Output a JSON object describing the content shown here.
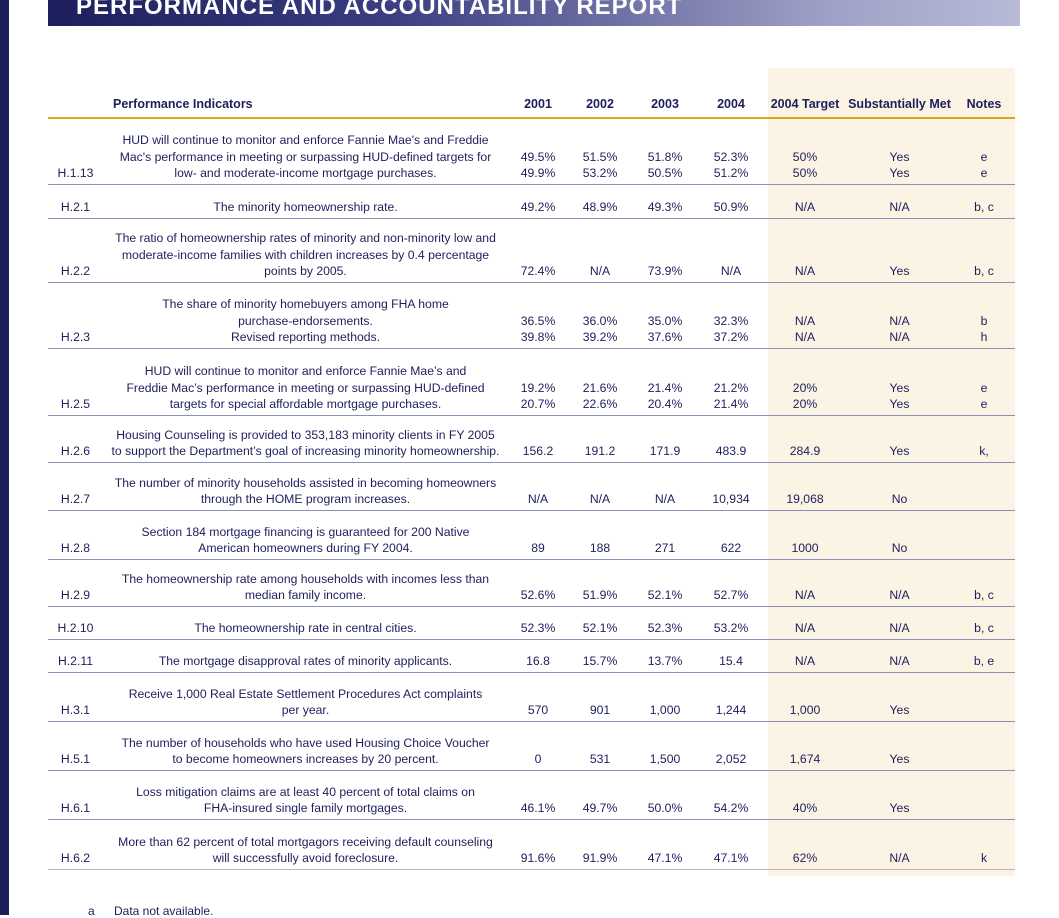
{
  "header": {
    "title": "PERFORMANCE AND ACCOUNTABILITY REPORT"
  },
  "table": {
    "columns": [
      "",
      "Performance Indicators",
      "2001",
      "2002",
      "2003",
      "2004",
      "2004 Target",
      "Substantially Met",
      "Notes"
    ],
    "rows": [
      {
        "code": "H.1.13",
        "desc": [
          "HUD will continue to monitor and enforce Fannie Mae's and Freddie",
          "Mac's performance in meeting or surpassing HUD-defined targets for",
          "low- and moderate-income mortgage purchases."
        ],
        "y2001": [
          "49.5%",
          "49.9%"
        ],
        "y2002": [
          "51.5%",
          "53.2%"
        ],
        "y2003": [
          "51.8%",
          "50.5%"
        ],
        "y2004": [
          "52.3%",
          "51.2%"
        ],
        "target": [
          "50%",
          "50%"
        ],
        "met": [
          "Yes",
          "Yes"
        ],
        "notes": [
          "e",
          "e"
        ]
      },
      {
        "code": "H.2.1",
        "desc": [
          "The minority homeownership rate."
        ],
        "y2001": [
          "49.2%"
        ],
        "y2002": [
          "48.9%"
        ],
        "y2003": [
          "49.3%"
        ],
        "y2004": [
          "50.9%"
        ],
        "target": [
          "N/A"
        ],
        "met": [
          "N/A"
        ],
        "notes": [
          "b, c"
        ]
      },
      {
        "code": "H.2.2",
        "desc": [
          "The ratio of homeownership rates of minority and non-minority low and",
          "moderate-income families with children increases by 0.4 percentage",
          "points by 2005."
        ],
        "y2001": [
          "72.4%"
        ],
        "y2002": [
          "N/A"
        ],
        "y2003": [
          "73.9%"
        ],
        "y2004": [
          "N/A"
        ],
        "target": [
          "N/A"
        ],
        "met": [
          "Yes"
        ],
        "notes": [
          "b, c"
        ]
      },
      {
        "code": "H.2.3",
        "desc": [
          "The share of minority homebuyers among FHA home",
          "purchase-endorsements.",
          "Revised reporting methods."
        ],
        "y2001": [
          "36.5%",
          "39.8%"
        ],
        "y2002": [
          "36.0%",
          "39.2%"
        ],
        "y2003": [
          "35.0%",
          "37.6%"
        ],
        "y2004": [
          "32.3%",
          "37.2%"
        ],
        "target": [
          "N/A",
          "N/A"
        ],
        "met": [
          "N/A",
          "N/A"
        ],
        "notes": [
          "b",
          "h"
        ]
      },
      {
        "code": "H.2.5",
        "desc": [
          "HUD will continue to monitor and enforce Fannie Mae’s and",
          "Freddie Mac’s performance in meeting or surpassing HUD-defined",
          "targets for special affordable mortgage purchases."
        ],
        "y2001": [
          "19.2%",
          "20.7%"
        ],
        "y2002": [
          "21.6%",
          "22.6%"
        ],
        "y2003": [
          "21.4%",
          "20.4%"
        ],
        "y2004": [
          "21.2%",
          "21.4%"
        ],
        "target": [
          "20%",
          "20%"
        ],
        "met": [
          "Yes",
          "Yes"
        ],
        "notes": [
          "e",
          "e"
        ]
      },
      {
        "code": "H.2.6",
        "desc": [
          "Housing Counseling is provided to 353,183 minority clients in FY 2005",
          "to support the Department’s goal of increasing minority homeownership."
        ],
        "y2001": [
          "156.2"
        ],
        "y2002": [
          "191.2"
        ],
        "y2003": [
          "171.9"
        ],
        "y2004": [
          "483.9"
        ],
        "target": [
          "284.9"
        ],
        "met": [
          "Yes"
        ],
        "notes": [
          "k,"
        ]
      },
      {
        "code": "H.2.7",
        "desc": [
          "The number of minority households assisted in becoming homeowners",
          "through the HOME program increases."
        ],
        "y2001": [
          "N/A"
        ],
        "y2002": [
          "N/A"
        ],
        "y2003": [
          "N/A"
        ],
        "y2004": [
          "10,934"
        ],
        "target": [
          "19,068"
        ],
        "met": [
          "No"
        ],
        "notes": [
          ""
        ]
      },
      {
        "code": "H.2.8",
        "desc": [
          "Section 184 mortgage financing is guaranteed for 200 Native",
          "American homeowners during FY 2004."
        ],
        "y2001": [
          "89"
        ],
        "y2002": [
          "188"
        ],
        "y2003": [
          "271"
        ],
        "y2004": [
          "622"
        ],
        "target": [
          "1000"
        ],
        "met": [
          "No"
        ],
        "notes": [
          ""
        ]
      },
      {
        "code": "H.2.9",
        "desc": [
          "The homeownership rate among households with incomes less than",
          "median family income."
        ],
        "y2001": [
          "52.6%"
        ],
        "y2002": [
          "51.9%"
        ],
        "y2003": [
          "52.1%"
        ],
        "y2004": [
          "52.7%"
        ],
        "target": [
          "N/A"
        ],
        "met": [
          "N/A"
        ],
        "notes": [
          "b, c"
        ]
      },
      {
        "code": "H.2.10",
        "desc": [
          "The homeownership rate in central cities."
        ],
        "y2001": [
          "52.3%"
        ],
        "y2002": [
          "52.1%"
        ],
        "y2003": [
          "52.3%"
        ],
        "y2004": [
          "53.2%"
        ],
        "target": [
          "N/A"
        ],
        "met": [
          "N/A"
        ],
        "notes": [
          "b, c"
        ]
      },
      {
        "code": "H.2.11",
        "desc": [
          "The mortgage disapproval rates of minority applicants."
        ],
        "y2001": [
          "16.8"
        ],
        "y2002": [
          "15.7%"
        ],
        "y2003": [
          "13.7%"
        ],
        "y2004": [
          "15.4"
        ],
        "target": [
          "N/A"
        ],
        "met": [
          "N/A"
        ],
        "notes": [
          "b, e"
        ]
      },
      {
        "code": "H.3.1",
        "desc": [
          "Receive 1,000 Real Estate Settlement Procedures Act complaints",
          "per year."
        ],
        "y2001": [
          "570"
        ],
        "y2002": [
          "901"
        ],
        "y2003": [
          "1,000"
        ],
        "y2004": [
          "1,244"
        ],
        "target": [
          "1,000"
        ],
        "met": [
          "Yes"
        ],
        "notes": [
          ""
        ]
      },
      {
        "code": "H.5.1",
        "desc": [
          "The number of households who have used Housing Choice Voucher",
          "to become homeowners increases by 20 percent."
        ],
        "y2001": [
          "0"
        ],
        "y2002": [
          "531"
        ],
        "y2003": [
          "1,500"
        ],
        "y2004": [
          "2,052"
        ],
        "target": [
          "1,674"
        ],
        "met": [
          "Yes"
        ],
        "notes": [
          ""
        ]
      },
      {
        "code": "H.6.1",
        "desc": [
          "Loss mitigation claims are at least 40 percent of total claims on",
          "FHA-insured single family mortgages."
        ],
        "y2001": [
          "46.1%"
        ],
        "y2002": [
          "49.7%"
        ],
        "y2003": [
          "50.0%"
        ],
        "y2004": [
          "54.2%"
        ],
        "target": [
          "40%"
        ],
        "met": [
          "Yes"
        ],
        "notes": [
          ""
        ]
      },
      {
        "code": "H.6.2",
        "desc": [
          "More than 62 percent of total mortgagors receiving default counseling",
          "will successfully avoid foreclosure."
        ],
        "y2001": [
          "91.6%"
        ],
        "y2002": [
          "91.9%"
        ],
        "y2003": [
          "47.1%"
        ],
        "y2004": [
          "47.1%"
        ],
        "target": [
          "62%"
        ],
        "met": [
          "N/A"
        ],
        "notes": [
          "k"
        ]
      }
    ]
  },
  "footnotes": [
    {
      "key": "a",
      "text": "Data not available."
    }
  ]
}
